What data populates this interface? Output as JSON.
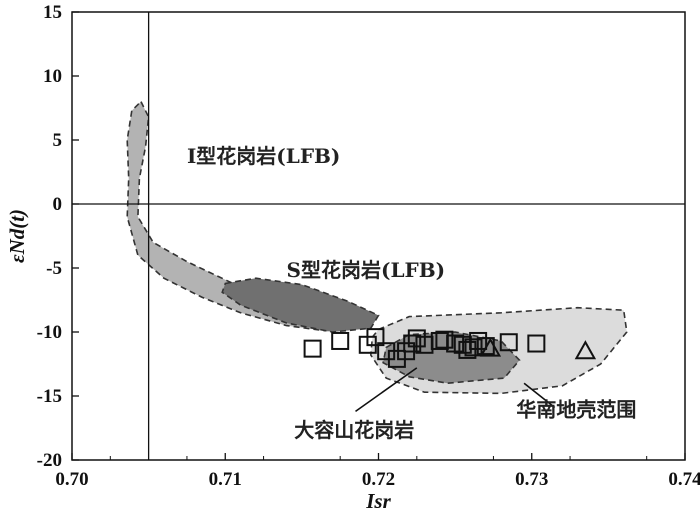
{
  "chart_data": {
    "type": "scatter",
    "title": "",
    "xlabel": "Isr",
    "ylabel": "εNd(t)",
    "xlim": [
      0.7,
      0.74
    ],
    "ylim": [
      -20,
      15
    ],
    "x_ticks": [
      "0.70",
      "0.71",
      "0.72",
      "0.73",
      "0.74"
    ],
    "y_ticks": [
      "15",
      "10",
      "5",
      "0",
      "-5",
      "-10",
      "-15",
      "-20"
    ],
    "reference_lines": {
      "vertical_x": 0.705,
      "horizontal_y": 0
    },
    "regions": [
      {
        "name": "I型花岗岩(LFB)",
        "fill": "#b3b3b3",
        "polygon": [
          [
            0.7045,
            8
          ],
          [
            0.705,
            6.8
          ],
          [
            0.7048,
            4.5
          ],
          [
            0.7044,
            2
          ],
          [
            0.7043,
            -1
          ],
          [
            0.7053,
            -3
          ],
          [
            0.7075,
            -4.5
          ],
          [
            0.7105,
            -6.2
          ],
          [
            0.714,
            -7.5
          ],
          [
            0.7165,
            -8.6
          ],
          [
            0.718,
            -9.7
          ],
          [
            0.7165,
            -9.9
          ],
          [
            0.714,
            -9.5
          ],
          [
            0.711,
            -8.5
          ],
          [
            0.7085,
            -7.3
          ],
          [
            0.706,
            -5.8
          ],
          [
            0.7043,
            -4
          ],
          [
            0.7036,
            -1
          ],
          [
            0.7037,
            2
          ],
          [
            0.7036,
            5
          ],
          [
            0.7039,
            7.3
          ]
        ]
      },
      {
        "name": "S型花岗岩(LFB)",
        "fill": "#707070",
        "polygon": [
          [
            0.71,
            -6.2
          ],
          [
            0.712,
            -5.8
          ],
          [
            0.715,
            -6.3
          ],
          [
            0.718,
            -7.6
          ],
          [
            0.72,
            -8.7
          ],
          [
            0.7195,
            -9.7
          ],
          [
            0.717,
            -10.0
          ],
          [
            0.714,
            -9.3
          ],
          [
            0.711,
            -7.9
          ],
          [
            0.7098,
            -6.9
          ]
        ]
      },
      {
        "name": "华南地壳范围",
        "fill": "#dcdcdc",
        "polygon": [
          [
            0.72,
            -9.8
          ],
          [
            0.722,
            -8.8
          ],
          [
            0.728,
            -8.5
          ],
          [
            0.733,
            -8.1
          ],
          [
            0.736,
            -8.3
          ],
          [
            0.7362,
            -10.0
          ],
          [
            0.7345,
            -12.5
          ],
          [
            0.732,
            -14.2
          ],
          [
            0.728,
            -14.8
          ],
          [
            0.723,
            -14.7
          ],
          [
            0.7205,
            -13.6
          ],
          [
            0.7195,
            -11.8
          ],
          [
            0.7196,
            -10.4
          ]
        ]
      },
      {
        "name": "大容山花岗岩",
        "fill": "#8c8c8c",
        "polygon": [
          [
            0.7205,
            -11.2
          ],
          [
            0.722,
            -10.2
          ],
          [
            0.725,
            -10.0
          ],
          [
            0.728,
            -10.7
          ],
          [
            0.7292,
            -12.2
          ],
          [
            0.7282,
            -13.6
          ],
          [
            0.7245,
            -14.0
          ],
          [
            0.722,
            -13.5
          ],
          [
            0.7203,
            -12.4
          ]
        ]
      }
    ],
    "series": [
      {
        "marker": "square",
        "points": [
          [
            0.7157,
            -11.3
          ],
          [
            0.7175,
            -10.7
          ],
          [
            0.7193,
            -11.0
          ],
          [
            0.7198,
            -10.4
          ],
          [
            0.7205,
            -11.5
          ],
          [
            0.7212,
            -12.1
          ],
          [
            0.7218,
            -11.5
          ],
          [
            0.7222,
            -10.9
          ],
          [
            0.7225,
            -10.5
          ],
          [
            0.723,
            -11.0
          ],
          [
            0.724,
            -10.7
          ],
          [
            0.7243,
            -10.6
          ],
          [
            0.725,
            -10.9
          ],
          [
            0.7255,
            -11.0
          ],
          [
            0.7258,
            -11.4
          ],
          [
            0.7262,
            -11.2
          ],
          [
            0.7265,
            -10.7
          ],
          [
            0.727,
            -11.1
          ],
          [
            0.7285,
            -10.8
          ],
          [
            0.7303,
            -10.9
          ]
        ]
      },
      {
        "marker": "triangle",
        "points": [
          [
            0.7273,
            -11.3
          ],
          [
            0.7335,
            -11.5
          ]
        ]
      }
    ],
    "labels": [
      {
        "text": "I型花岗岩(LFB)",
        "x": 0.7075,
        "y": 3.2
      },
      {
        "text": "S型花岗岩(LFB)",
        "x": 0.714,
        "y": -5.7
      },
      {
        "text": "大容山花岗岩",
        "x": 0.7145,
        "y": -18.2
      },
      {
        "text": "华南地壳范围",
        "x": 0.729,
        "y": -16.6
      }
    ],
    "leader_lines": [
      {
        "from": [
          0.7185,
          -16.2
        ],
        "to": [
          0.7225,
          -12.8
        ]
      },
      {
        "from": [
          0.7315,
          -15.9
        ],
        "to": [
          0.7295,
          -14.0
        ]
      }
    ]
  }
}
